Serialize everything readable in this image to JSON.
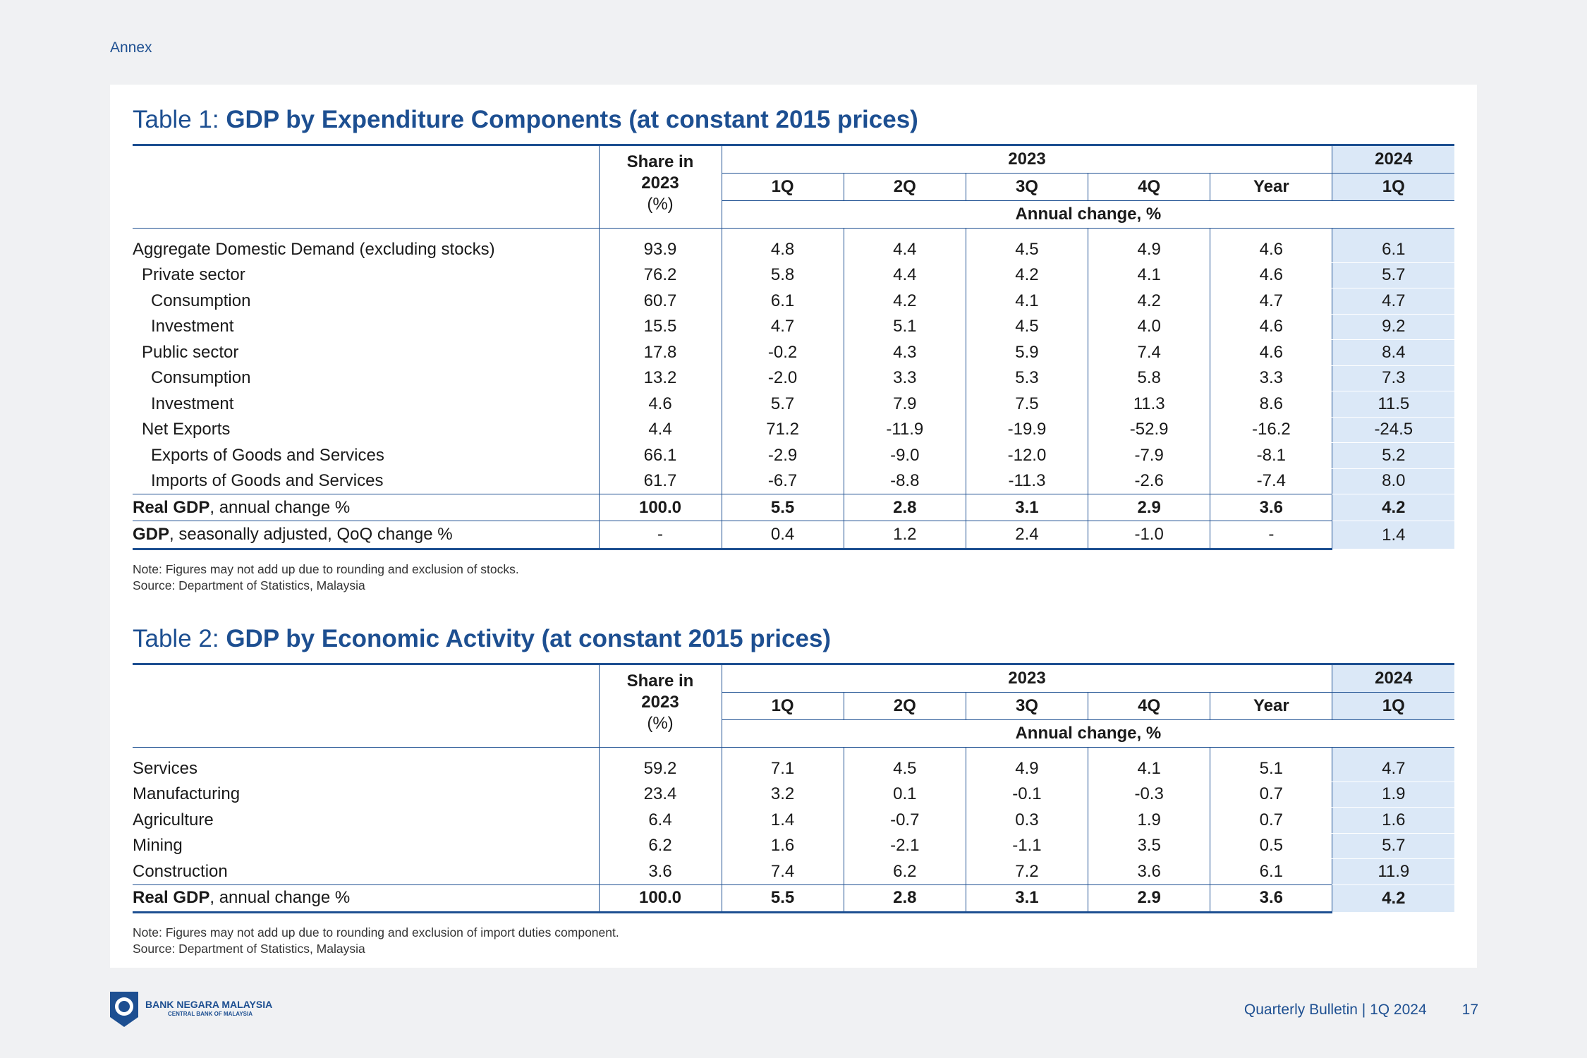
{
  "annex_label": "Annex",
  "table1": {
    "title_prefix": "Table 1: ",
    "title_main": "GDP by Expenditure Components (at constant 2015 prices)",
    "header": {
      "share_l1": "Share in",
      "share_l2": "2023",
      "share_l3": "(%)",
      "year_2023": "2023",
      "year_2024": "2024",
      "quarters": [
        "1Q",
        "2Q",
        "3Q",
        "4Q",
        "Year",
        "1Q"
      ],
      "annual_change": "Annual change, %"
    },
    "rows": [
      {
        "label": "Aggregate Domestic Demand (excluding stocks)",
        "values": [
          "93.9",
          "4.8",
          "4.4",
          "4.5",
          "4.9",
          "4.6",
          "6.1"
        ]
      },
      {
        "label": "Private sector",
        "values": [
          "76.2",
          "5.8",
          "4.4",
          "4.2",
          "4.1",
          "4.6",
          "5.7"
        ]
      },
      {
        "label": "Consumption",
        "values": [
          "60.7",
          "6.1",
          "4.2",
          "4.1",
          "4.2",
          "4.7",
          "4.7"
        ]
      },
      {
        "label": "Investment",
        "values": [
          "15.5",
          "4.7",
          "5.1",
          "4.5",
          "4.0",
          "4.6",
          "9.2"
        ]
      },
      {
        "label": "Public sector",
        "values": [
          "17.8",
          "-0.2",
          "4.3",
          "5.9",
          "7.4",
          "4.6",
          "8.4"
        ]
      },
      {
        "label": "Consumption",
        "values": [
          "13.2",
          "-2.0",
          "3.3",
          "5.3",
          "5.8",
          "3.3",
          "7.3"
        ]
      },
      {
        "label": "Investment",
        "values": [
          "4.6",
          "5.7",
          "7.9",
          "7.5",
          "11.3",
          "8.6",
          "11.5"
        ]
      },
      {
        "label": "Net Exports",
        "values": [
          "4.4",
          "71.2",
          "-11.9",
          "-19.9",
          "-52.9",
          "-16.2",
          "-24.5"
        ]
      },
      {
        "label": "Exports of Goods and Services",
        "values": [
          "66.1",
          "-2.9",
          "-9.0",
          "-12.0",
          "-7.9",
          "-8.1",
          "5.2"
        ]
      },
      {
        "label": "Imports of Goods and Services",
        "values": [
          "61.7",
          "-6.7",
          "-8.8",
          "-11.3",
          "-2.6",
          "-7.4",
          "8.0"
        ]
      }
    ],
    "total": {
      "label_bold": "Real GDP",
      "label_rest": ", annual change %",
      "values": [
        "100.0",
        "5.5",
        "2.8",
        "3.1",
        "2.9",
        "3.6",
        "4.2"
      ]
    },
    "qoq": {
      "label_bold": "GDP",
      "label_rest": ", seasonally adjusted, QoQ change %",
      "values": [
        "-",
        "0.4",
        "1.2",
        "2.4",
        "-1.0",
        "-",
        "1.4"
      ]
    },
    "note": "Note: Figures may not add up due to rounding and exclusion of stocks.",
    "source": "Source: Department of Statistics, Malaysia"
  },
  "table2": {
    "title_prefix": "Table 2: ",
    "title_main": "GDP by Economic Activity (at constant 2015 prices)",
    "header": {
      "share_l1": "Share in",
      "share_l2": "2023",
      "share_l3": "(%)",
      "year_2023": "2023",
      "year_2024": "2024",
      "quarters": [
        "1Q",
        "2Q",
        "3Q",
        "4Q",
        "Year",
        "1Q"
      ],
      "annual_change": "Annual change, %"
    },
    "rows": [
      {
        "label": "Services",
        "values": [
          "59.2",
          "7.1",
          "4.5",
          "4.9",
          "4.1",
          "5.1",
          "4.7"
        ]
      },
      {
        "label": "Manufacturing",
        "values": [
          "23.4",
          "3.2",
          "0.1",
          "-0.1",
          "-0.3",
          "0.7",
          "1.9"
        ]
      },
      {
        "label": "Agriculture",
        "values": [
          "6.4",
          "1.4",
          "-0.7",
          "0.3",
          "1.9",
          "0.7",
          "1.6"
        ]
      },
      {
        "label": "Mining",
        "values": [
          "6.2",
          "1.6",
          "-2.1",
          "-1.1",
          "3.5",
          "0.5",
          "5.7"
        ]
      },
      {
        "label": "Construction",
        "values": [
          "3.6",
          "7.4",
          "6.2",
          "7.2",
          "3.6",
          "6.1",
          "11.9"
        ]
      }
    ],
    "total": {
      "label_bold": "Real GDP",
      "label_rest": ", annual change %",
      "values": [
        "100.0",
        "5.5",
        "2.8",
        "3.1",
        "2.9",
        "3.6",
        "4.2"
      ]
    },
    "note": "Note: Figures may not add up due to rounding and exclusion of import duties component.",
    "source": "Source: Department of Statistics, Malaysia"
  },
  "footer": {
    "logo_line1": "BANK NEGARA MALAYSIA",
    "logo_line2": "CENTRAL BANK OF MALAYSIA",
    "publication": "Quarterly Bulletin | 1Q 2024",
    "page_number": "17"
  },
  "colors": {
    "brand_blue": "#1d4f91",
    "highlight_column": "#dbe8f7",
    "page_background": "#f0f1f3"
  }
}
